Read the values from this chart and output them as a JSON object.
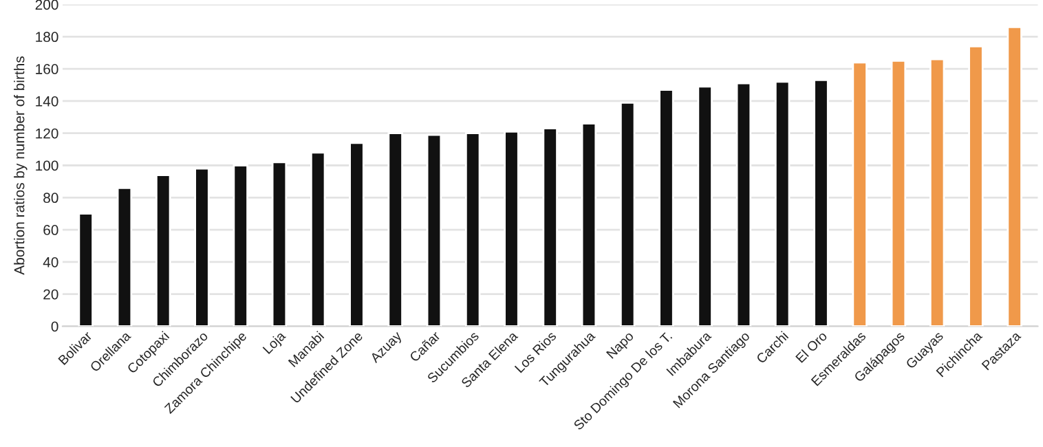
{
  "chart_data": {
    "type": "bar",
    "ylabel": "Abortion ratios by number of births",
    "categories": [
      "Bolivar",
      "Orellana",
      "Cotopaxi",
      "Chimborazo",
      "Zamora Chinchipe",
      "Loja",
      "Manabi",
      "Undefined Zone",
      "Azuay",
      "Cañar",
      "Sucumbios",
      "Santa Elena",
      "Los Rios",
      "Tungurahua",
      "Napo",
      "Sto Domingo De los T.",
      "Imbabura",
      "Morona Santiago",
      "Carchi",
      "El Oro",
      "Esmeraldas",
      "Galápagos",
      "Guayas",
      "Pichincha",
      "Pastaza"
    ],
    "values": [
      70,
      86,
      94,
      98,
      100,
      102,
      108,
      114,
      120,
      119,
      120,
      121,
      123,
      126,
      139,
      147,
      149,
      151,
      152,
      153,
      164,
      165,
      166,
      174,
      186
    ],
    "colors": [
      "#111111",
      "#111111",
      "#111111",
      "#111111",
      "#111111",
      "#111111",
      "#111111",
      "#111111",
      "#111111",
      "#111111",
      "#111111",
      "#111111",
      "#111111",
      "#111111",
      "#111111",
      "#111111",
      "#111111",
      "#111111",
      "#111111",
      "#111111",
      "#f0994a",
      "#f0994a",
      "#f0994a",
      "#f0994a",
      "#f0994a"
    ],
    "ylim": [
      0,
      200
    ],
    "yticks": [
      0,
      20,
      40,
      60,
      80,
      100,
      120,
      140,
      160,
      180,
      200
    ],
    "grid": "y"
  }
}
